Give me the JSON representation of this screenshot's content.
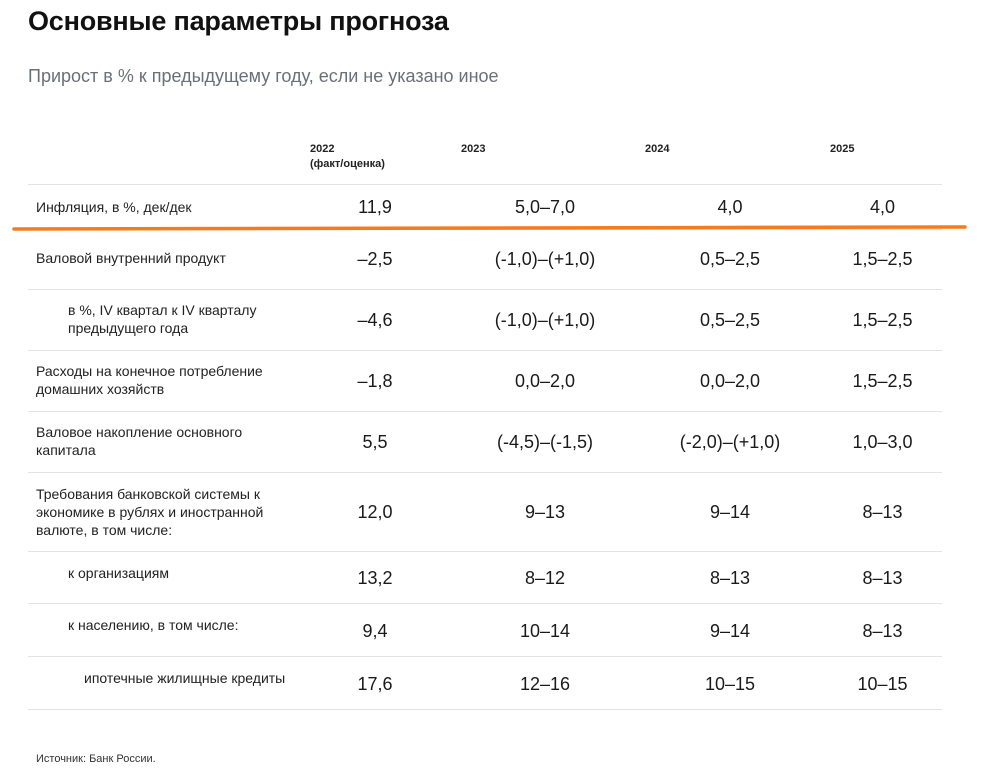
{
  "title": "Основные параметры прогноза",
  "subtitle": "Прирост в % к предыдущему году, если не указано иное",
  "table": {
    "headers": {
      "y2022_line1": "2022",
      "y2022_line2": "(факт/оценка)",
      "y2023": "2023",
      "y2024": "2024",
      "y2025": "2025"
    },
    "rows": [
      {
        "label": "Инфляция, в %, дек/дек",
        "v2022": "11,9",
        "v2023": "5,0–7,0",
        "v2024": "4,0",
        "v2025": "4,0"
      },
      {
        "label": "Валовой внутренний продукт",
        "v2022": "–2,5",
        "v2023": "(-1,0)–(+1,0)",
        "v2024": "0,5–2,5",
        "v2025": "1,5–2,5"
      },
      {
        "label": "в %, IV квартал к IV кварталу предыдущего года",
        "v2022": "–4,6",
        "v2023": "(-1,0)–(+1,0)",
        "v2024": "0,5–2,5",
        "v2025": "1,5–2,5"
      },
      {
        "label": "Расходы на конечное потребление домашних хозяйств",
        "v2022": "–1,8",
        "v2023": "0,0–2,0",
        "v2024": "0,0–2,0",
        "v2025": "1,5–2,5"
      },
      {
        "label": "Валовое накопление основного капитала",
        "v2022": "5,5",
        "v2023": "(-4,5)–(-1,5)",
        "v2024": "(-2,0)–(+1,0)",
        "v2025": "1,0–3,0"
      },
      {
        "label": "Требования банковской системы к экономике в рублях и иностранной валюте, в том числе:",
        "v2022": "12,0",
        "v2023": "9–13",
        "v2024": "9–14",
        "v2025": "8–13"
      },
      {
        "label": "к организациям",
        "v2022": "13,2",
        "v2023": "8–12",
        "v2024": "8–13",
        "v2025": "8–13"
      },
      {
        "label": "к населению, в том числе:",
        "v2022": "9,4",
        "v2023": "10–14",
        "v2024": "9–14",
        "v2025": "8–13"
      },
      {
        "label": "ипотечные жилищные кредиты",
        "v2022": "17,6",
        "v2023": "12–16",
        "v2024": "10–15",
        "v2025": "10–15"
      }
    ]
  },
  "source": "Источник: Банк России.",
  "colors": {
    "highlight": "#f47b20",
    "divider": "#e3e3e3"
  }
}
